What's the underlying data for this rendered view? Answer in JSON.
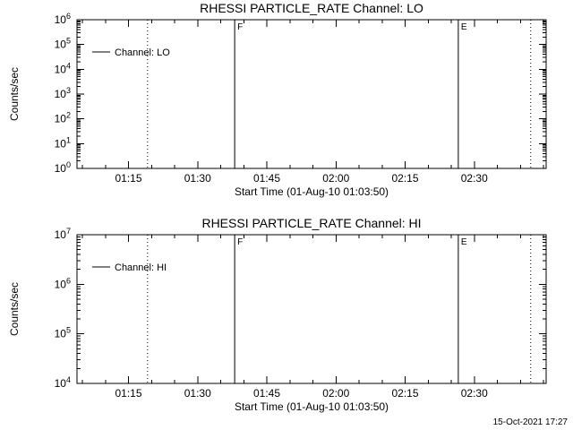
{
  "page": {
    "background": "#ffffff",
    "footer_timestamp": "15-Oct-2021 17:27"
  },
  "chart_data": [
    {
      "type": "line",
      "title": "RHESSI PARTICLE_RATE Channel: LO",
      "xlabel": "Start Time (01-Aug-10 01:03:50)",
      "ylabel": "Counts/sec",
      "yscale": "log",
      "y_exp_min": 0,
      "y_exp_max": 6,
      "ylim": [
        1,
        1000000
      ],
      "x_start_label": "01:03:50",
      "x_range_minutes": [
        0,
        101.75
      ],
      "x_major_ticks": [
        {
          "minutes": 11.17,
          "label": "01:15"
        },
        {
          "minutes": 26.17,
          "label": "01:30"
        },
        {
          "minutes": 41.17,
          "label": "01:45"
        },
        {
          "minutes": 56.17,
          "label": "02:00"
        },
        {
          "minutes": 71.17,
          "label": "02:15"
        },
        {
          "minutes": 86.17,
          "label": "02:30"
        }
      ],
      "x_minor_first": 1.17,
      "x_minor_step": 5,
      "grid": false,
      "legend": {
        "label": "Channel: LO",
        "position": "upper-left"
      },
      "events": [
        {
          "minutes": 15.3,
          "style": "dotted",
          "label": ""
        },
        {
          "minutes": 34.2,
          "style": "solid",
          "label": "F"
        },
        {
          "minutes": 82.7,
          "style": "solid",
          "label": "E"
        },
        {
          "minutes": 98.4,
          "style": "dotted",
          "label": ""
        }
      ],
      "series": []
    },
    {
      "type": "line",
      "title": "RHESSI PARTICLE_RATE Channel: HI",
      "xlabel": "Start Time (01-Aug-10 01:03:50)",
      "ylabel": "Counts/sec",
      "yscale": "log",
      "y_exp_min": 4,
      "y_exp_max": 7,
      "ylim": [
        10000,
        10000000
      ],
      "x_start_label": "01:03:50",
      "x_range_minutes": [
        0,
        101.75
      ],
      "x_major_ticks": [
        {
          "minutes": 11.17,
          "label": "01:15"
        },
        {
          "minutes": 26.17,
          "label": "01:30"
        },
        {
          "minutes": 41.17,
          "label": "01:45"
        },
        {
          "minutes": 56.17,
          "label": "02:00"
        },
        {
          "minutes": 71.17,
          "label": "02:15"
        },
        {
          "minutes": 86.17,
          "label": "02:30"
        }
      ],
      "x_minor_first": 1.17,
      "x_minor_step": 5,
      "grid": false,
      "legend": {
        "label": "Channel: HI",
        "position": "upper-left"
      },
      "events": [
        {
          "minutes": 15.3,
          "style": "dotted",
          "label": ""
        },
        {
          "minutes": 34.2,
          "style": "solid",
          "label": "F"
        },
        {
          "minutes": 82.7,
          "style": "solid",
          "label": "E"
        },
        {
          "minutes": 98.4,
          "style": "dotted",
          "label": ""
        }
      ],
      "series": []
    }
  ]
}
